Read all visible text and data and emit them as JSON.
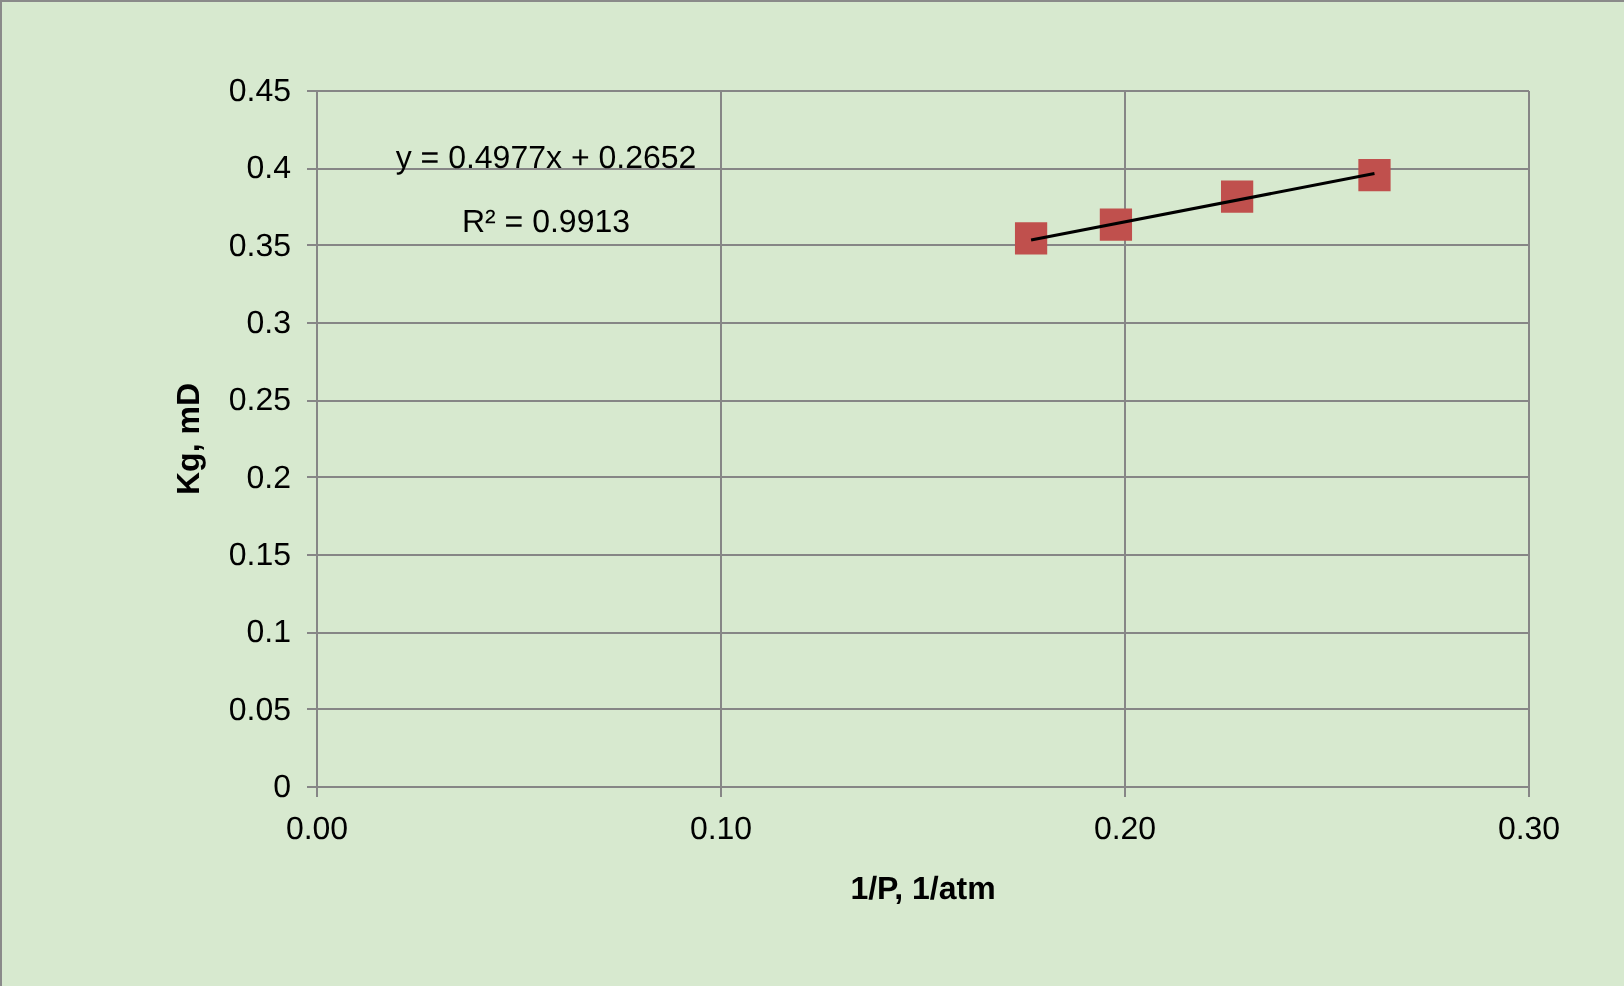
{
  "chart_data": {
    "type": "scatter",
    "xlabel": "1/P, 1/atm",
    "ylabel": "Kg, mD",
    "series": [
      {
        "color": "#c0504d",
        "x": [
          0.177,
          0.198,
          0.228,
          0.262
        ],
        "values": [
          0.354,
          0.363,
          0.381,
          0.395
        ]
      },
      {
        "type": "line",
        "marker": "none",
        "color": "#000000",
        "x": [
          0.177,
          0.262
        ],
        "values": [
          0.353,
          0.396
        ]
      }
    ],
    "annotations": [
      "y = 0.4977x + 0.2652",
      "R² = 0.9913"
    ],
    "xlim": [
      0,
      0.3
    ],
    "xticks": [
      {
        "value": 0,
        "label": "0.00"
      },
      {
        "value": 0.1,
        "label": "0.10"
      },
      {
        "value": 0.2,
        "label": "0.20"
      },
      {
        "value": 0.3,
        "label": "0.30"
      }
    ],
    "ylim": [
      0,
      0.45
    ],
    "yticks": [
      0,
      0.05,
      0.1,
      0.15,
      0.2,
      0.25,
      0.3,
      0.35,
      0.4,
      0.45
    ],
    "grid": true,
    "marker": "square",
    "line_style": "solid"
  }
}
